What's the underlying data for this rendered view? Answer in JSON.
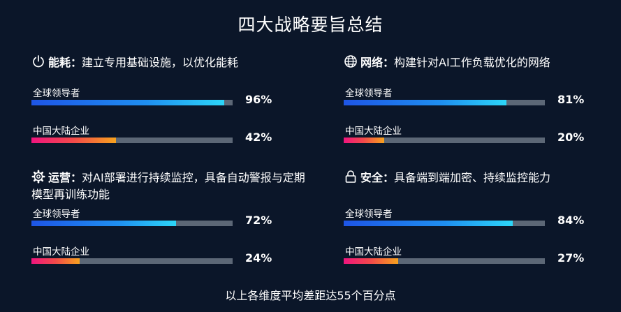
{
  "title": "四大战略要旨总结",
  "footer": "以上各维度平均差距达55个百分点",
  "colors": {
    "background": "#0b1629",
    "global_bar_start": "#1e55e6",
    "global_bar_end": "#2dd6f8",
    "china_bar_start": "#f0157e",
    "china_bar_end": "#f7a21e",
    "track": "#5c6776"
  },
  "chart_data": {
    "type": "bar",
    "orientation": "horizontal",
    "unit": "%",
    "xlim": [
      0,
      100
    ],
    "panels": [
      {
        "icon": "power-icon",
        "name": "能耗",
        "colon": "：",
        "desc": "建立专用基础设施，以优化能耗",
        "series": [
          {
            "name": "全球领导者",
            "value": 96,
            "label": "96%"
          },
          {
            "name": "中国大陆企业",
            "value": 42,
            "label": "42%"
          }
        ]
      },
      {
        "icon": "globe-icon",
        "name": "网络",
        "colon": "：",
        "desc": "构建针对AI工作负载优化的网络",
        "series": [
          {
            "name": "全球领导者",
            "value": 81,
            "label": "81%"
          },
          {
            "name": "中国大陆企业",
            "value": 20,
            "label": "20%"
          }
        ]
      },
      {
        "icon": "gear-icon",
        "name": "运营",
        "colon": "：",
        "desc": "对AI部署进行持续监控，具备自动警报与定期模型再训练功能",
        "series": [
          {
            "name": "全球领导者",
            "value": 72,
            "label": "72%"
          },
          {
            "name": "中国大陆企业",
            "value": 24,
            "label": "24%"
          }
        ]
      },
      {
        "icon": "lock-icon",
        "name": "安全",
        "colon": "：",
        "desc": "具备端到端加密、持续监控能力",
        "series": [
          {
            "name": "全球领导者",
            "value": 84,
            "label": "84%"
          },
          {
            "name": "中国大陆企业",
            "value": 27,
            "label": "27%"
          }
        ]
      }
    ]
  }
}
